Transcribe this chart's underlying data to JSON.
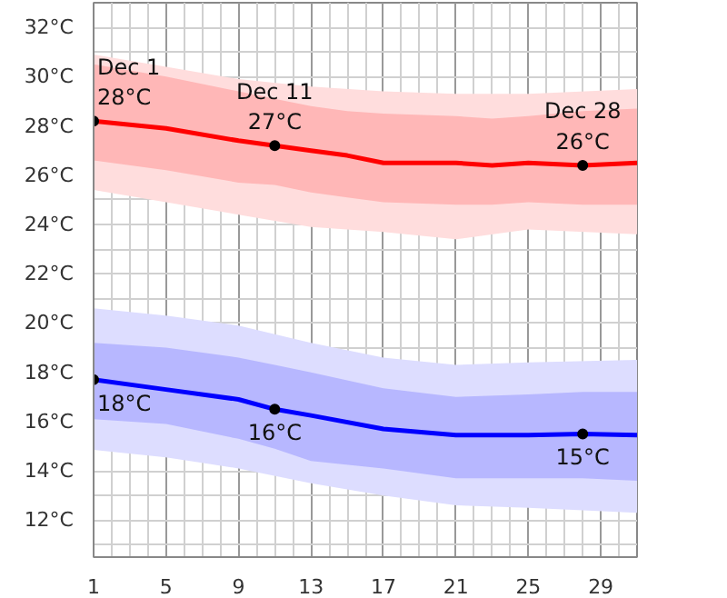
{
  "chart_data": {
    "type": "line",
    "xlim": [
      1,
      31
    ],
    "ylim": [
      10.5,
      33
    ],
    "xticks": [
      1,
      5,
      9,
      13,
      17,
      21,
      25,
      29
    ],
    "yticks": [
      {
        "value": 12,
        "label": "12°C"
      },
      {
        "value": 14,
        "label": "14°C"
      },
      {
        "value": 16,
        "label": "16°C"
      },
      {
        "value": 18,
        "label": "18°C"
      },
      {
        "value": 20,
        "label": "20°C"
      },
      {
        "value": 22,
        "label": "22°C"
      },
      {
        "value": 24,
        "label": "24°C"
      },
      {
        "value": 26,
        "label": "26°C"
      },
      {
        "value": 28,
        "label": "28°C"
      },
      {
        "value": 30,
        "label": "30°C"
      },
      {
        "value": 32,
        "label": "32°C"
      }
    ],
    "grid": true,
    "marker": "none",
    "line_style": "solid",
    "series": [
      {
        "color": "#ff0000",
        "x": [
          1,
          5,
          9,
          13,
          17,
          21,
          25,
          31
        ],
        "values": [
          null,
          null,
          null,
          null,
          null,
          null,
          null,
          null
        ],
        "lower": [
          25.4,
          24.9,
          24.4,
          23.9,
          23.7,
          23.4,
          23.8,
          23.6
        ],
        "upper": [
          30.9,
          30.4,
          29.9,
          29.6,
          29.4,
          29.3,
          29.3,
          29.5
        ]
      },
      {
        "color": "#ff0000",
        "x": [
          1,
          5,
          9,
          11,
          13,
          15,
          17,
          21,
          23,
          25,
          28,
          31
        ],
        "values": [
          28.2,
          27.9,
          27.4,
          27.2,
          27.0,
          26.8,
          26.5,
          26.5,
          26.4,
          26.5,
          26.4,
          26.5
        ],
        "lower": [
          26.6,
          26.2,
          25.7,
          25.6,
          25.3,
          25.1,
          24.9,
          24.8,
          24.8,
          24.9,
          24.8,
          24.8
        ],
        "upper": [
          30.5,
          30.0,
          29.4,
          29.1,
          28.8,
          28.6,
          28.5,
          28.4,
          28.3,
          28.4,
          28.6,
          28.7
        ]
      },
      {
        "color": "#0000ff",
        "x": [
          1,
          5,
          9,
          13,
          17,
          21,
          25,
          31
        ],
        "values": [
          null,
          null,
          null,
          null,
          null,
          null,
          null,
          null
        ],
        "lower": [
          14.85,
          14.55,
          14.1,
          13.5,
          13.0,
          12.6,
          12.5,
          12.3
        ],
        "upper": [
          20.6,
          20.3,
          19.9,
          19.2,
          18.6,
          18.3,
          18.4,
          18.5
        ]
      },
      {
        "color": "#0000ff",
        "x": [
          1,
          5,
          9,
          11,
          13,
          17,
          21,
          25,
          28,
          31
        ],
        "values": [
          17.7,
          17.3,
          16.9,
          16.5,
          16.25,
          15.7,
          15.45,
          15.45,
          15.5,
          15.45
        ],
        "lower": [
          16.1,
          15.9,
          15.3,
          14.9,
          14.4,
          14.1,
          13.7,
          13.7,
          13.7,
          13.6
        ],
        "upper": [
          19.2,
          19.0,
          18.6,
          18.3,
          18.0,
          17.35,
          17.0,
          17.1,
          17.2,
          17.2
        ]
      }
    ],
    "annotations": [
      {
        "text": "Dec 1\n28°C",
        "x": 1,
        "y": 28.2
      },
      {
        "text": "Dec 11\n27°C",
        "x": 11,
        "y": 27.2
      },
      {
        "text": "Dec 28\n26°C",
        "x": 28,
        "y": 26.4
      },
      {
        "text": "18°C",
        "x": 1,
        "y": 17.7
      },
      {
        "text": "16°C",
        "x": 11,
        "y": 16.5
      },
      {
        "text": "15°C",
        "x": 28,
        "y": 15.5
      }
    ]
  }
}
